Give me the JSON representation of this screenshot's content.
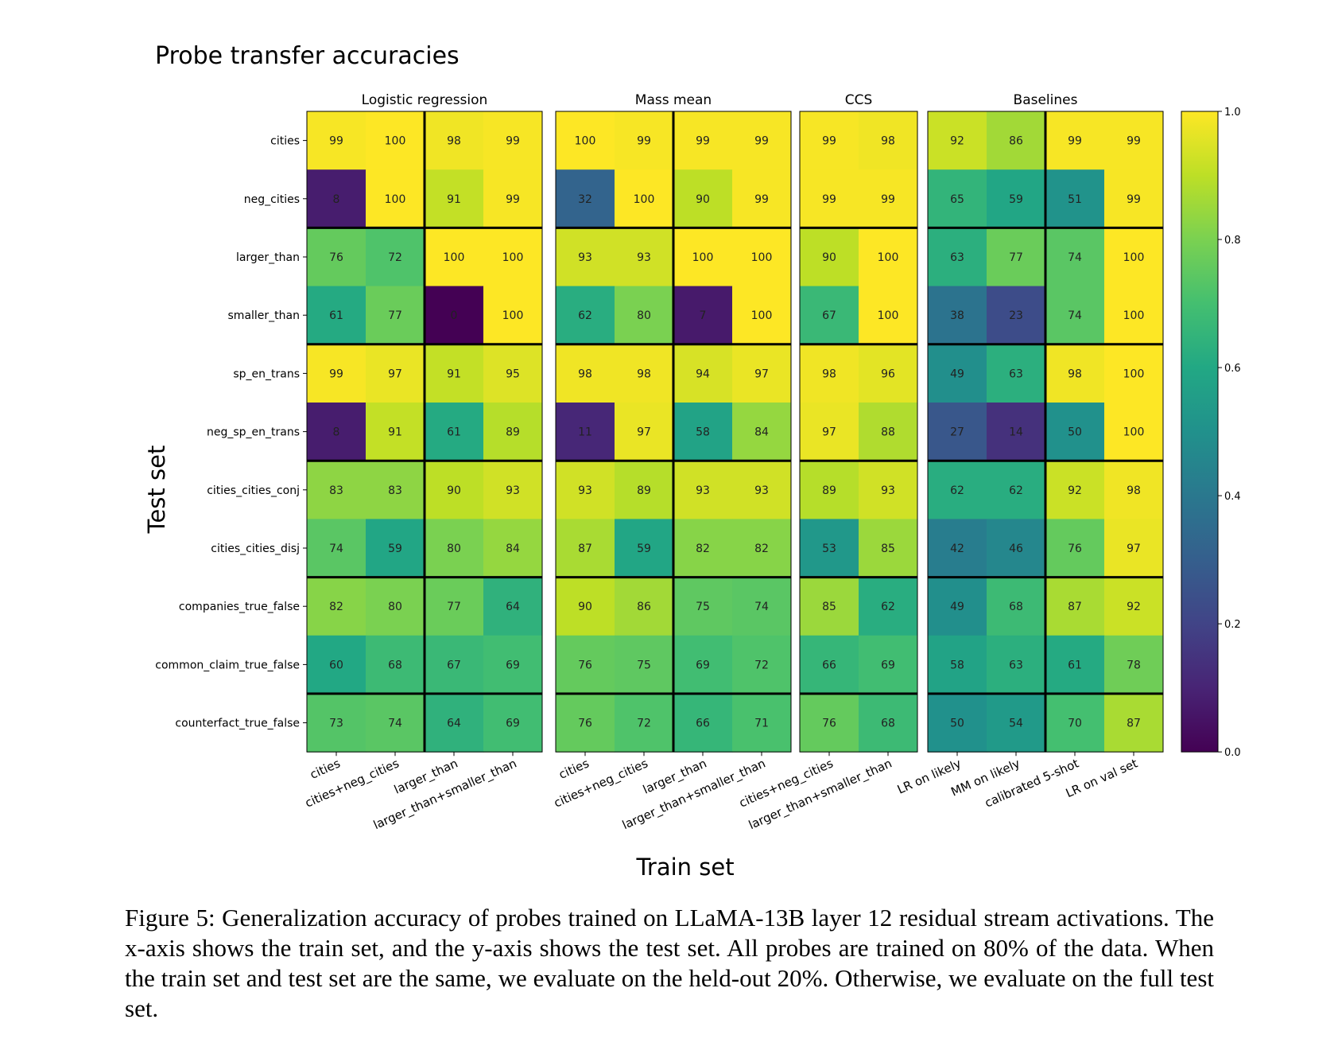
{
  "chart_data": {
    "type": "heatmap",
    "title": "Probe transfer accuracies",
    "xlabel": "Train set",
    "ylabel": "Test set",
    "colormap": "viridis",
    "colorbar": {
      "min": 0.0,
      "max": 1.0,
      "ticks": [
        "0.0",
        "0.2",
        "0.4",
        "0.6",
        "0.8",
        "1.0"
      ]
    },
    "rows": [
      "cities",
      "neg_cities",
      "larger_than",
      "smaller_than",
      "sp_en_trans",
      "neg_sp_en_trans",
      "cities_cities_conj",
      "cities_cities_disj",
      "companies_true_false",
      "common_claim_true_false",
      "counterfact_true_false"
    ],
    "panels": [
      {
        "title": "Logistic regression",
        "columns": [
          "cities",
          "cities+neg_cities",
          "larger_than",
          "larger_than+smaller_than"
        ],
        "values": [
          [
            99,
            100,
            98,
            99
          ],
          [
            8,
            100,
            91,
            99
          ],
          [
            76,
            72,
            100,
            100
          ],
          [
            61,
            77,
            0,
            100
          ],
          [
            99,
            97,
            91,
            95
          ],
          [
            8,
            91,
            61,
            89
          ],
          [
            83,
            83,
            90,
            93
          ],
          [
            74,
            59,
            80,
            84
          ],
          [
            82,
            80,
            77,
            64
          ],
          [
            60,
            68,
            67,
            69
          ],
          [
            73,
            74,
            64,
            69
          ]
        ]
      },
      {
        "title": "Mass mean",
        "columns": [
          "cities",
          "cities+neg_cities",
          "larger_than",
          "larger_than+smaller_than"
        ],
        "values": [
          [
            100,
            99,
            99,
            99
          ],
          [
            32,
            100,
            90,
            99
          ],
          [
            93,
            93,
            100,
            100
          ],
          [
            62,
            80,
            7,
            100
          ],
          [
            98,
            98,
            94,
            97
          ],
          [
            11,
            97,
            58,
            84
          ],
          [
            93,
            89,
            93,
            93
          ],
          [
            87,
            59,
            82,
            82
          ],
          [
            90,
            86,
            75,
            74
          ],
          [
            76,
            75,
            69,
            72
          ],
          [
            76,
            72,
            66,
            71
          ]
        ]
      },
      {
        "title": "CCS",
        "columns": [
          "cities+neg_cities",
          "larger_than+smaller_than"
        ],
        "values": [
          [
            99,
            98
          ],
          [
            99,
            99
          ],
          [
            90,
            100
          ],
          [
            67,
            100
          ],
          [
            98,
            96
          ],
          [
            97,
            88
          ],
          [
            89,
            93
          ],
          [
            53,
            85
          ],
          [
            85,
            62
          ],
          [
            66,
            69
          ],
          [
            76,
            68
          ]
        ]
      },
      {
        "title": "Baselines",
        "columns": [
          "LR on likely",
          "MM on likely",
          "calibrated 5-shot",
          "LR on val set"
        ],
        "values": [
          [
            92,
            86,
            99,
            99
          ],
          [
            65,
            59,
            51,
            99
          ],
          [
            63,
            77,
            74,
            100
          ],
          [
            38,
            23,
            74,
            100
          ],
          [
            49,
            63,
            98,
            100
          ],
          [
            27,
            14,
            50,
            100
          ],
          [
            62,
            62,
            92,
            98
          ],
          [
            42,
            46,
            76,
            97
          ],
          [
            49,
            68,
            87,
            92
          ],
          [
            58,
            63,
            61,
            78
          ],
          [
            50,
            54,
            70,
            87
          ]
        ]
      }
    ]
  },
  "caption": {
    "text": "Figure 5: Generalization accuracy of probes trained on LLaMA-13B layer 12 residual stream activations. The x-axis shows the train set, and the y-axis shows the test set. All probes are trained on 80% of the data. When the train set and test set are the same, we evaluate on the held-out 20%. Otherwise, we evaluate on the full test set."
  }
}
